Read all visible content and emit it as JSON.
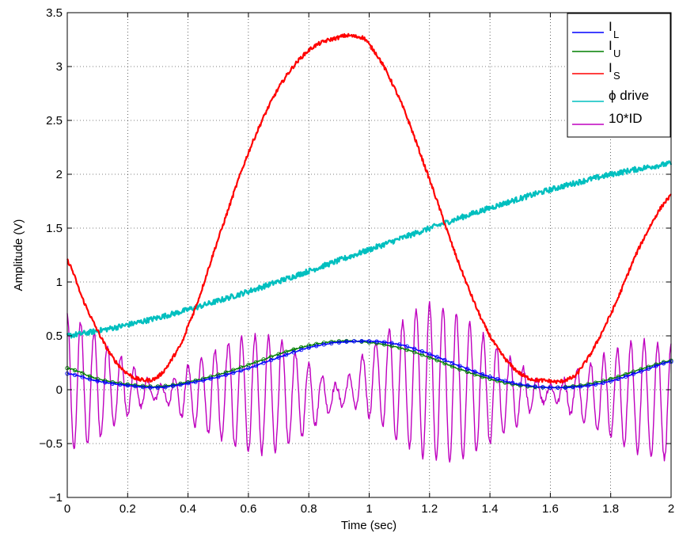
{
  "chart_data": {
    "type": "line",
    "title": "",
    "xlabel": "Time (sec)",
    "ylabel": "Amplitude (V)",
    "xlim": [
      0,
      2
    ],
    "ylim": [
      -1,
      3.5
    ],
    "grid": true,
    "legend_position": "top-right",
    "x_ticks": [
      0,
      0.2,
      0.4,
      0.6,
      0.8,
      1,
      1.2,
      1.4,
      1.6,
      1.8,
      2
    ],
    "y_ticks": [
      -1,
      -0.5,
      0,
      0.5,
      1,
      1.5,
      2,
      2.5,
      3,
      3.5
    ],
    "x_tick_labels": [
      "0",
      "0.2",
      "0.4",
      "0.6",
      "0.8",
      "1",
      "1.2",
      "1.4",
      "1.6",
      "1.8",
      "2"
    ],
    "y_tick_labels": [
      "−1",
      "−0.5",
      "0",
      "0.5",
      "1",
      "1.5",
      "2",
      "2.5",
      "3",
      "3.5"
    ],
    "series": [
      {
        "name": "I",
        "subscript": "L",
        "color": "#0000ff",
        "x": [
          0,
          0.1,
          0.2,
          0.3,
          0.4,
          0.5,
          0.6,
          0.7,
          0.8,
          0.9,
          1.0,
          1.1,
          1.2,
          1.3,
          1.4,
          1.5,
          1.6,
          1.7,
          1.8,
          1.9,
          2.0
        ],
        "y": [
          0.15,
          0.08,
          0.04,
          0.02,
          0.06,
          0.12,
          0.2,
          0.3,
          0.39,
          0.44,
          0.45,
          0.42,
          0.33,
          0.22,
          0.12,
          0.05,
          0.02,
          0.03,
          0.08,
          0.17,
          0.26
        ]
      },
      {
        "name": "I",
        "subscript": "U",
        "color": "#007f00",
        "x": [
          0,
          0.1,
          0.2,
          0.3,
          0.4,
          0.5,
          0.6,
          0.7,
          0.8,
          0.9,
          1.0,
          1.1,
          1.2,
          1.3,
          1.4,
          1.5,
          1.6,
          1.7,
          1.8,
          1.9,
          2.0
        ],
        "y": [
          0.2,
          0.1,
          0.05,
          0.03,
          0.07,
          0.14,
          0.23,
          0.33,
          0.41,
          0.45,
          0.44,
          0.39,
          0.3,
          0.19,
          0.1,
          0.04,
          0.02,
          0.04,
          0.1,
          0.19,
          0.27
        ]
      },
      {
        "name": "I",
        "subscript": "S",
        "color": "#ff0000",
        "x": [
          0,
          0.05,
          0.1,
          0.15,
          0.2,
          0.25,
          0.3,
          0.35,
          0.4,
          0.5,
          0.6,
          0.7,
          0.8,
          0.9,
          0.95,
          1.0,
          1.1,
          1.2,
          1.3,
          1.4,
          1.5,
          1.6,
          1.65,
          1.7,
          1.8,
          1.9,
          2.0
        ],
        "y": [
          1.2,
          0.85,
          0.55,
          0.3,
          0.15,
          0.09,
          0.12,
          0.3,
          0.6,
          1.4,
          2.2,
          2.8,
          3.15,
          3.27,
          3.28,
          3.2,
          2.7,
          1.95,
          1.15,
          0.5,
          0.15,
          0.08,
          0.09,
          0.2,
          0.7,
          1.35,
          1.8
        ]
      },
      {
        "name": "ϕ drive",
        "subscript": "",
        "color": "#00bfbf",
        "x": [
          0,
          2
        ],
        "y": [
          0.5,
          2.1
        ]
      },
      {
        "name": "10*ID",
        "subscript": "",
        "color": "#bf00bf",
        "x": [
          0,
          0.1,
          0.2,
          0.3,
          0.4,
          0.5,
          0.6,
          0.7,
          0.8,
          0.9,
          1.0,
          1.1,
          1.2,
          1.3,
          1.4,
          1.5,
          1.6,
          1.7,
          1.8,
          1.9,
          2.0
        ],
        "envelope_upper": [
          0.7,
          0.5,
          0.25,
          0.05,
          0.22,
          0.38,
          0.5,
          0.45,
          0.25,
          0.05,
          0.38,
          0.62,
          0.8,
          0.68,
          0.45,
          0.22,
          0.05,
          0.2,
          0.35,
          0.45,
          0.4
        ],
        "envelope_lower": [
          -0.58,
          -0.45,
          -0.25,
          -0.1,
          -0.3,
          -0.45,
          -0.58,
          -0.55,
          -0.38,
          -0.15,
          -0.25,
          -0.48,
          -0.65,
          -0.65,
          -0.5,
          -0.3,
          -0.1,
          -0.3,
          -0.45,
          -0.6,
          -0.65
        ],
        "cycles": 45
      }
    ]
  }
}
